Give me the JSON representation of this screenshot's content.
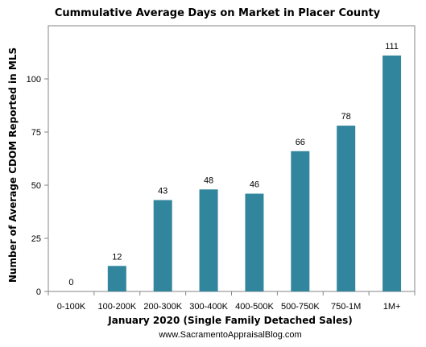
{
  "chart_data": {
    "type": "bar",
    "title": "Cummulative Average Days on Market in Placer County",
    "xlabel": "January 2020  (Single Family Detached Sales)",
    "ylabel": "Number of Average CDOM Reported in MLS",
    "categories": [
      "0-100K",
      "100-200K",
      "200-300K",
      "300-400K",
      "400-500K",
      "500-750K",
      "750-1M",
      "1M+"
    ],
    "values": [
      0,
      12,
      43,
      48,
      46,
      66,
      78,
      111
    ],
    "data_labels": [
      "0",
      "12",
      "43",
      "48",
      "46",
      "66",
      "78",
      "111"
    ],
    "ylim": [
      0,
      125
    ],
    "yticks": [
      0,
      25,
      50,
      75,
      100
    ],
    "ytick_labels": [
      "0",
      "25",
      "50",
      "75",
      "100"
    ],
    "bar_color": "#31859C",
    "grid": false,
    "legend": "none"
  },
  "footer": {
    "source": "www.SacramentoAppraisalBlog.com"
  }
}
